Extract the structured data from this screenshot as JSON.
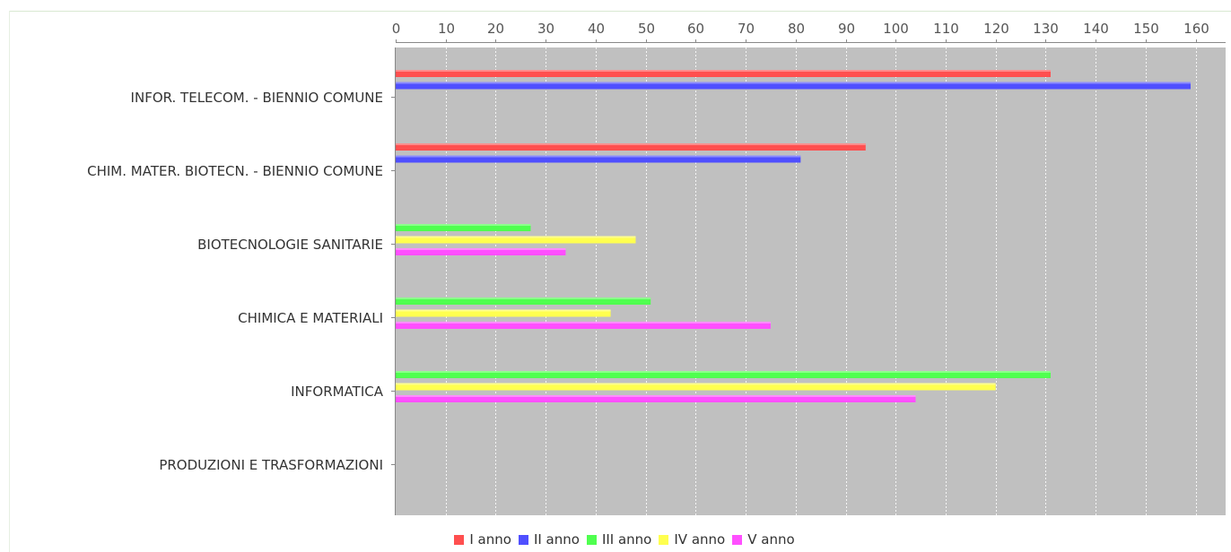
{
  "chart_data": {
    "type": "bar",
    "orientation": "horizontal",
    "title": "",
    "xlabel": "",
    "ylabel": "",
    "xlim": [
      0,
      166
    ],
    "x_ticks": [
      0,
      10,
      20,
      30,
      40,
      50,
      60,
      70,
      80,
      90,
      100,
      110,
      120,
      130,
      140,
      150,
      160
    ],
    "x_axis_position": "top",
    "grid": true,
    "plot_background": "#c0c0c0",
    "legend_position": "bottom",
    "categories": [
      "INFOR. TELECOM. - BIENNIO COMUNE",
      "CHIM. MATER. BIOTECN. - BIENNIO COMUNE",
      "BIOTECNOLOGIE SANITARIE",
      "CHIMICA E MATERIALI",
      "INFORMATICA",
      "PRODUZIONI E TRASFORMAZIONI"
    ],
    "series": [
      {
        "name": "I anno",
        "color": "#ff4f4f",
        "values": [
          131,
          94,
          null,
          null,
          null,
          null
        ]
      },
      {
        "name": "II anno",
        "color": "#4f4fff",
        "values": [
          159,
          81,
          null,
          null,
          null,
          null
        ]
      },
      {
        "name": "III anno",
        "color": "#4fff4f",
        "values": [
          null,
          null,
          27,
          51,
          131,
          null
        ]
      },
      {
        "name": "IV anno",
        "color": "#ffff4f",
        "values": [
          null,
          null,
          48,
          43,
          120,
          null
        ]
      },
      {
        "name": "V anno",
        "color": "#ff4fff",
        "values": [
          null,
          null,
          34,
          75,
          104,
          null
        ]
      }
    ]
  }
}
